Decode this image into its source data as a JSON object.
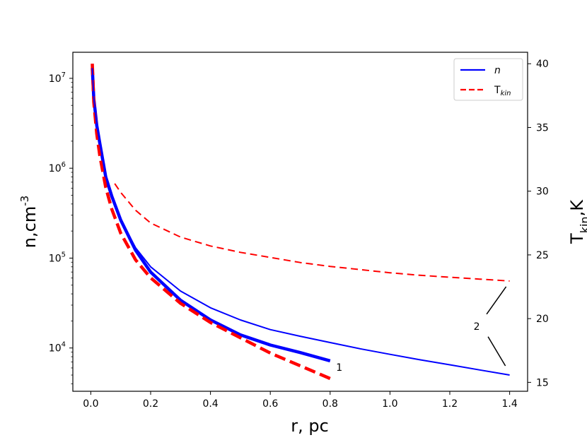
{
  "chart_data": {
    "type": "line",
    "x_axis": {
      "label": "r, pc",
      "lim": [
        -0.06,
        1.46
      ],
      "ticks": [
        0.0,
        0.2,
        0.4,
        0.6,
        0.8,
        1.0,
        1.2,
        1.4
      ],
      "tick_labels": [
        "0.0",
        "0.2",
        "0.4",
        "0.6",
        "0.8",
        "1.0",
        "1.2",
        "1.4"
      ]
    },
    "y_left_axis": {
      "label": "n,cm",
      "label_sup": "-3",
      "scale": "log",
      "lim": [
        3300,
        19500000
      ],
      "ticks": [
        10000,
        100000,
        1000000,
        10000000
      ],
      "tick_labels": [
        {
          "base": "10",
          "exp": "4"
        },
        {
          "base": "10",
          "exp": "5"
        },
        {
          "base": "10",
          "exp": "6"
        },
        {
          "base": "10",
          "exp": "7"
        }
      ]
    },
    "y_right_axis": {
      "label": "T",
      "label_sub": "kin",
      "label_suffix": ",K",
      "lim": [
        14.3,
        40.9
      ],
      "ticks": [
        15,
        20,
        25,
        30,
        35,
        40
      ],
      "tick_labels": [
        "15",
        "20",
        "25",
        "30",
        "35",
        "40"
      ]
    },
    "legend": {
      "position": "top-right",
      "entries": [
        {
          "label": "n",
          "color": "#0000ff",
          "style": "solid"
        },
        {
          "label": "T",
          "label_sub": "kin",
          "color": "#ff0000",
          "style": "dashed"
        }
      ]
    },
    "series": [
      {
        "label": "1",
        "axis": "left",
        "color": "#0000ff",
        "style": "solid",
        "width": 4.5,
        "x": [
          0.005,
          0.01,
          0.02,
          0.03,
          0.05,
          0.07,
          0.1,
          0.15,
          0.2,
          0.3,
          0.4,
          0.5,
          0.6,
          0.7,
          0.8
        ],
        "y": [
          13000000,
          6000000,
          3000000,
          1900000,
          800000,
          490000,
          265000,
          122000,
          70000,
          34000,
          20500,
          14000,
          10800,
          8900,
          7200
        ]
      },
      {
        "label": "1",
        "axis": "right",
        "color": "#ff0000",
        "style": "dashed",
        "width": 4.5,
        "x": [
          0.005,
          0.01,
          0.02,
          0.03,
          0.05,
          0.07,
          0.1,
          0.15,
          0.2,
          0.3,
          0.4,
          0.5,
          0.6,
          0.7,
          0.8
        ],
        "y": [
          40.0,
          37.0,
          34.5,
          32.8,
          30.3,
          28.6,
          26.7,
          24.6,
          23.2,
          21.2,
          19.7,
          18.5,
          17.3,
          16.3,
          15.3
        ]
      },
      {
        "label": "2",
        "axis": "left",
        "color": "#0000ff",
        "style": "solid",
        "width": 2,
        "x": [
          0.005,
          0.01,
          0.02,
          0.03,
          0.05,
          0.07,
          0.1,
          0.15,
          0.2,
          0.3,
          0.4,
          0.5,
          0.6,
          0.7,
          0.8,
          0.9,
          1.0,
          1.1,
          1.2,
          1.3,
          1.4
        ],
        "y": [
          13000000,
          6000000,
          3000000,
          1900000,
          800000,
          490000,
          265000,
          130000,
          80000,
          43000,
          28000,
          20500,
          16000,
          13500,
          11500,
          9800,
          8500,
          7400,
          6500,
          5700,
          5000
        ]
      },
      {
        "label": "2",
        "axis": "right",
        "color": "#ff0000",
        "style": "dashed",
        "width": 2,
        "x": [
          0.08,
          0.1,
          0.15,
          0.2,
          0.3,
          0.4,
          0.5,
          0.6,
          0.7,
          0.8,
          0.9,
          1.0,
          1.1,
          1.2,
          1.3,
          1.4
        ],
        "y": [
          30.6,
          29.9,
          28.5,
          27.5,
          26.4,
          25.7,
          25.2,
          24.8,
          24.4,
          24.1,
          23.85,
          23.6,
          23.4,
          23.25,
          23.1,
          22.95
        ]
      }
    ],
    "annotations": [
      {
        "text": "1",
        "x": 0.82,
        "y_left": 6100
      },
      {
        "text": "2",
        "x": 1.29,
        "y_left": 17500
      }
    ]
  }
}
